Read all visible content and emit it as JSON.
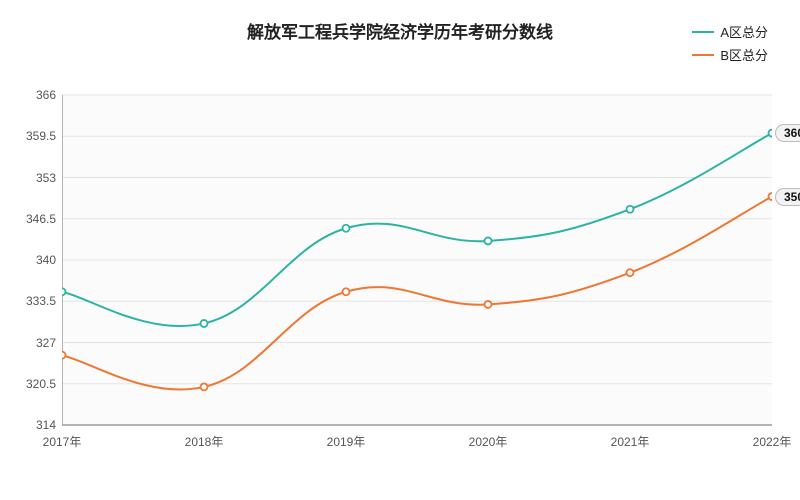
{
  "chart": {
    "type": "line",
    "title": "解放军工程兵学院经济学历年考研分数线",
    "title_fontsize": 17,
    "background_color": "#ffffff",
    "plot_background_color": "#fbfbfb",
    "grid_color": "#e4e4e4",
    "axis_line_color": "#888888",
    "axis_label_color": "#555555",
    "label_fontsize": 12,
    "xlabels": [
      "2017年",
      "2018年",
      "2019年",
      "2020年",
      "2021年",
      "2022年"
    ],
    "ylim": [
      314,
      366
    ],
    "ytick_step": 6.5,
    "yticks": [
      314,
      320.5,
      327,
      333.5,
      340,
      346.5,
      353,
      359.5,
      366
    ],
    "line_width": 2,
    "marker_radius": 3.5,
    "marker_fill": "#ffffff",
    "data_label_bg": "#f3f3f3",
    "data_label_border": "#bbbbbb",
    "series": [
      {
        "name": "A区总分",
        "color": "#2bb3a3",
        "values": [
          335,
          330,
          345,
          343,
          348,
          360
        ]
      },
      {
        "name": "B区总分",
        "color": "#ee7733",
        "values": [
          325,
          320,
          335,
          333,
          338,
          350
        ]
      }
    ]
  }
}
